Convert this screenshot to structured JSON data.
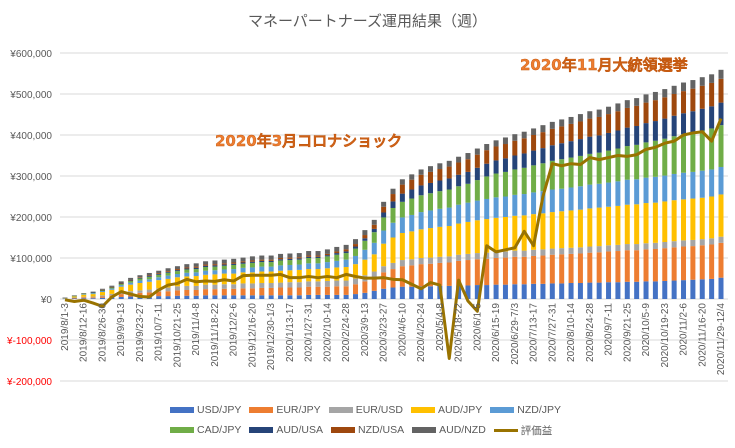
{
  "chart_data": {
    "type": "bar",
    "stacked": true,
    "title": "マネーパートナーズ運用結果（週）",
    "xlabel": "",
    "ylabel": "",
    "ylim": [
      -200000,
      600000
    ],
    "yticks": [
      600000,
      500000,
      400000,
      300000,
      200000,
      100000,
      0,
      -100000,
      -200000
    ],
    "ytick_labels": [
      "¥600,000",
      "¥500,000",
      "¥400,000",
      "¥300,000",
      "¥200,000",
      "¥100,000",
      "¥0",
      "¥-100,000",
      "¥-200,000"
    ],
    "negative_label_color": "#ff0000",
    "grid": true,
    "legend_position": "bottom",
    "x_tick_labels": [
      "2019/8/1-3",
      "2019/8/12-16",
      "2019/8/26-30",
      "2019/9/9-13",
      "2019/9/23-27",
      "2019/10/7-11",
      "2019/10/21-25",
      "2019/11/4-8",
      "2019/11/18-22",
      "2019/12/2-6",
      "2019/12/16-20",
      "2019/12/30-1/3",
      "2020/1/13-17",
      "2020/1/27-31",
      "2020/2/10-14",
      "2020/2/24-28",
      "2020/3/9-13",
      "2020/3/23-27",
      "2020/4/6-10",
      "2020/4/20-24",
      "2020/5/4-8",
      "2020/5/18-22",
      "2020/6/1-5",
      "2020/6/15-19",
      "2020/6/29-7/3",
      "2020/7/13-17",
      "2020/7/27-31",
      "2020/8/10-14",
      "2020/8/24-28",
      "2020/9/7-11",
      "2020/9/21-25",
      "2020/10/5-9",
      "2020/10/19-23",
      "2020/11/2-6",
      "2020/11/16-20",
      "2020/11/29-12/4"
    ],
    "n_weeks": 71,
    "annotations": [
      "2020年3月コロナショック",
      "2020年11月大統領選挙"
    ],
    "series": [
      {
        "name": "USD/JPY",
        "color": "#4472c4",
        "values": [
          1000,
          1500,
          2000,
          2000,
          3000,
          4000,
          5000,
          6000,
          6000,
          6000,
          7000,
          7000,
          8000,
          8000,
          8000,
          9000,
          9000,
          9000,
          9000,
          9000,
          9000,
          9000,
          9000,
          9000,
          9000,
          9000,
          10000,
          10000,
          10000,
          10000,
          10000,
          12000,
          15000,
          20000,
          25000,
          28000,
          30000,
          30000,
          31000,
          31000,
          32000,
          32000,
          33000,
          33000,
          34000,
          34000,
          35000,
          35000,
          36000,
          36000,
          37000,
          37000,
          38000,
          38000,
          39000,
          39000,
          40000,
          40000,
          41000,
          41000,
          42000,
          42000,
          43000,
          43000,
          44000,
          45000,
          46000,
          47000,
          48000,
          49000,
          52000
        ]
      },
      {
        "name": "EUR/JPY",
        "color": "#ed7d31",
        "values": [
          0,
          1000,
          2000,
          2000,
          3000,
          5000,
          7000,
          8000,
          9000,
          10000,
          11000,
          12000,
          13000,
          14000,
          14000,
          15000,
          15000,
          16000,
          16000,
          17000,
          17000,
          18000,
          18000,
          19000,
          19000,
          19000,
          20000,
          20000,
          20000,
          21000,
          21000,
          24000,
          28000,
          32000,
          40000,
          45000,
          50000,
          52000,
          54000,
          55000,
          56000,
          57000,
          60000,
          62000,
          63000,
          64000,
          65000,
          66000,
          67000,
          67000,
          68000,
          69000,
          70000,
          71000,
          71000,
          72000,
          73000,
          74000,
          75000,
          76000,
          77000,
          77000,
          78000,
          79000,
          80000,
          81000,
          82000,
          82000,
          83000,
          84000,
          85000
        ]
      },
      {
        "name": "EUR/USD",
        "color": "#a5a5a5",
        "values": [
          500,
          1000,
          1500,
          2000,
          3000,
          3500,
          4000,
          5000,
          6000,
          7000,
          8000,
          9000,
          10000,
          10000,
          10000,
          11000,
          11000,
          11000,
          11000,
          12000,
          12000,
          12000,
          12000,
          12000,
          13000,
          13000,
          13000,
          13000,
          14000,
          14000,
          14000,
          14000,
          15000,
          15000,
          15000,
          15000,
          15000,
          15000,
          15000,
          15000,
          15000,
          15000,
          15000,
          15000,
          15000,
          15000,
          15000,
          15000,
          15000,
          15000,
          15000,
          15000,
          15000,
          15000,
          15000,
          15000,
          15000,
          15000,
          15000,
          15000,
          15000,
          15000,
          15000,
          15000,
          15000,
          15000,
          15000,
          15000,
          15000,
          15000,
          15000
        ]
      },
      {
        "name": "AUD/JPY",
        "color": "#ffc000",
        "values": [
          1000,
          3000,
          5000,
          6000,
          8000,
          10000,
          14000,
          16000,
          18000,
          19000,
          20000,
          21000,
          22000,
          23000,
          24000,
          24000,
          25000,
          26000,
          26000,
          27000,
          27000,
          28000,
          28000,
          29000,
          29000,
          30000,
          30000,
          30000,
          31000,
          32000,
          33000,
          35000,
          38000,
          42000,
          55000,
          62000,
          66000,
          68000,
          70000,
          72000,
          73000,
          74000,
          76000,
          78000,
          80000,
          82000,
          83000,
          84000,
          85000,
          86000,
          87000,
          88000,
          89000,
          90000,
          91000,
          92000,
          93000,
          94000,
          94000,
          95000,
          96000,
          97000,
          98000,
          98000,
          99000,
          100000,
          100000,
          101000,
          101000,
          102000,
          103000
        ]
      },
      {
        "name": "NZD/JPY",
        "color": "#5b9bd5",
        "values": [
          500,
          1000,
          1500,
          2000,
          2500,
          3000,
          4000,
          5000,
          6000,
          6000,
          7000,
          8000,
          8000,
          9000,
          9000,
          10000,
          10000,
          10000,
          11000,
          11000,
          12000,
          12000,
          12000,
          13000,
          13000,
          13000,
          14000,
          14000,
          15000,
          16000,
          18000,
          20000,
          24000,
          28000,
          32000,
          36000,
          38000,
          40000,
          42000,
          43000,
          44000,
          45000,
          46000,
          47000,
          48000,
          49000,
          50000,
          50000,
          51000,
          52000,
          53000,
          54000,
          55000,
          55000,
          56000,
          57000,
          58000,
          58000,
          59000,
          60000,
          61000,
          61000,
          62000,
          63000,
          63000,
          64000,
          65000,
          65000,
          66000,
          66000,
          67000
        ]
      },
      {
        "name": "CAD/JPY",
        "color": "#70ad47",
        "values": [
          0,
          500,
          1000,
          1500,
          2000,
          2500,
          3000,
          4000,
          5000,
          6000,
          6000,
          7000,
          7000,
          8000,
          8000,
          9000,
          9000,
          9000,
          10000,
          10000,
          11000,
          11000,
          11000,
          12000,
          12000,
          12000,
          13000,
          13000,
          14000,
          15000,
          16000,
          18000,
          22000,
          26000,
          32000,
          36000,
          38000,
          40000,
          41000,
          42000,
          43000,
          44000,
          45000,
          46000,
          50000,
          55000,
          58000,
          60000,
          62000,
          64000,
          66000,
          68000,
          70000,
          72000,
          73000,
          74000,
          75000,
          76000,
          78000,
          80000,
          82000,
          84000,
          86000,
          88000,
          90000,
          92000,
          94000,
          96000,
          98000,
          100000,
          102000
        ]
      },
      {
        "name": "AUD/USA",
        "color": "#264478",
        "values": [
          0,
          0,
          0,
          500,
          500,
          1000,
          1000,
          1500,
          1500,
          2000,
          2000,
          2000,
          2500,
          2500,
          3000,
          3000,
          3000,
          3000,
          3000,
          3000,
          3000,
          3000,
          3000,
          3000,
          3000,
          3000,
          3000,
          3000,
          3000,
          4000,
          4000,
          5000,
          6000,
          8000,
          12000,
          16000,
          20000,
          22000,
          24000,
          25000,
          26000,
          27000,
          28000,
          29000,
          30000,
          31000,
          32000,
          33000,
          34000,
          35000,
          36000,
          37000,
          38000,
          39000,
          40000,
          41000,
          42000,
          42000,
          43000,
          44000,
          45000,
          46000,
          47000,
          48000,
          49000,
          50000,
          51000,
          52000,
          53000,
          54000,
          55000
        ]
      },
      {
        "name": "NZD/USA",
        "color": "#9e480e",
        "values": [
          0,
          0,
          0,
          0,
          500,
          500,
          1000,
          1000,
          1500,
          1500,
          2000,
          2000,
          2500,
          2500,
          3000,
          3000,
          3000,
          3000,
          3000,
          3000,
          3000,
          3000,
          3000,
          3000,
          3000,
          3000,
          3000,
          3000,
          3000,
          4000,
          5000,
          6000,
          8000,
          10000,
          14000,
          18000,
          22000,
          24000,
          26000,
          27000,
          28000,
          29000,
          30000,
          31000,
          32000,
          33000,
          34000,
          35000,
          36000,
          37000,
          38000,
          39000,
          40000,
          41000,
          42000,
          43000,
          44000,
          45000,
          46000,
          47000,
          48000,
          49000,
          50000,
          51000,
          52000,
          53000,
          54000,
          55000,
          56000,
          57000,
          58000
        ]
      },
      {
        "name": "AUD/NZD",
        "color": "#636363",
        "values": [
          500,
          1000,
          1500,
          2000,
          2500,
          3000,
          4000,
          5000,
          5000,
          6000,
          6000,
          7000,
          7000,
          8000,
          8000,
          8000,
          9000,
          9000,
          9000,
          9000,
          10000,
          10000,
          10000,
          10000,
          10000,
          10000,
          11000,
          11000,
          11000,
          11000,
          11000,
          12000,
          12000,
          12000,
          12000,
          13000,
          13000,
          13000,
          13000,
          14000,
          14000,
          14000,
          14000,
          15000,
          15000,
          15000,
          15000,
          16000,
          16000,
          16000,
          16000,
          17000,
          17000,
          17000,
          17000,
          18000,
          18000,
          18000,
          18000,
          19000,
          19000,
          19000,
          20000,
          20000,
          20000,
          20000,
          21000,
          21000,
          21000,
          21000,
          22000
        ]
      }
    ],
    "line_series": {
      "name": "評価益",
      "color": "#997300",
      "values": [
        -2000,
        -6000,
        -3000,
        -10000,
        -18000,
        5000,
        18000,
        12000,
        6000,
        5000,
        22000,
        34000,
        38000,
        48000,
        42000,
        44000,
        43000,
        47000,
        44000,
        57000,
        58000,
        58000,
        58000,
        60000,
        52000,
        52000,
        55000,
        52000,
        55000,
        52000,
        60000,
        55000,
        51000,
        51000,
        52000,
        48000,
        47000,
        36000,
        25000,
        40000,
        34000,
        -145000,
        46000,
        -5000,
        -30000,
        130000,
        115000,
        120000,
        125000,
        165000,
        130000,
        250000,
        330000,
        325000,
        330000,
        328000,
        345000,
        340000,
        345000,
        350000,
        348000,
        352000,
        365000,
        370000,
        380000,
        385000,
        400000,
        405000,
        408000,
        385000,
        440000
      ]
    }
  },
  "legend": {
    "row1": [
      "USD/JPY",
      "EUR/JPY",
      "EUR/USD",
      "AUD/JPY",
      "NZD/JPY"
    ],
    "row2": [
      "CAD/JPY",
      "AUD/USA",
      "NZD/USA",
      "AUD/NZD",
      "評価益"
    ]
  }
}
